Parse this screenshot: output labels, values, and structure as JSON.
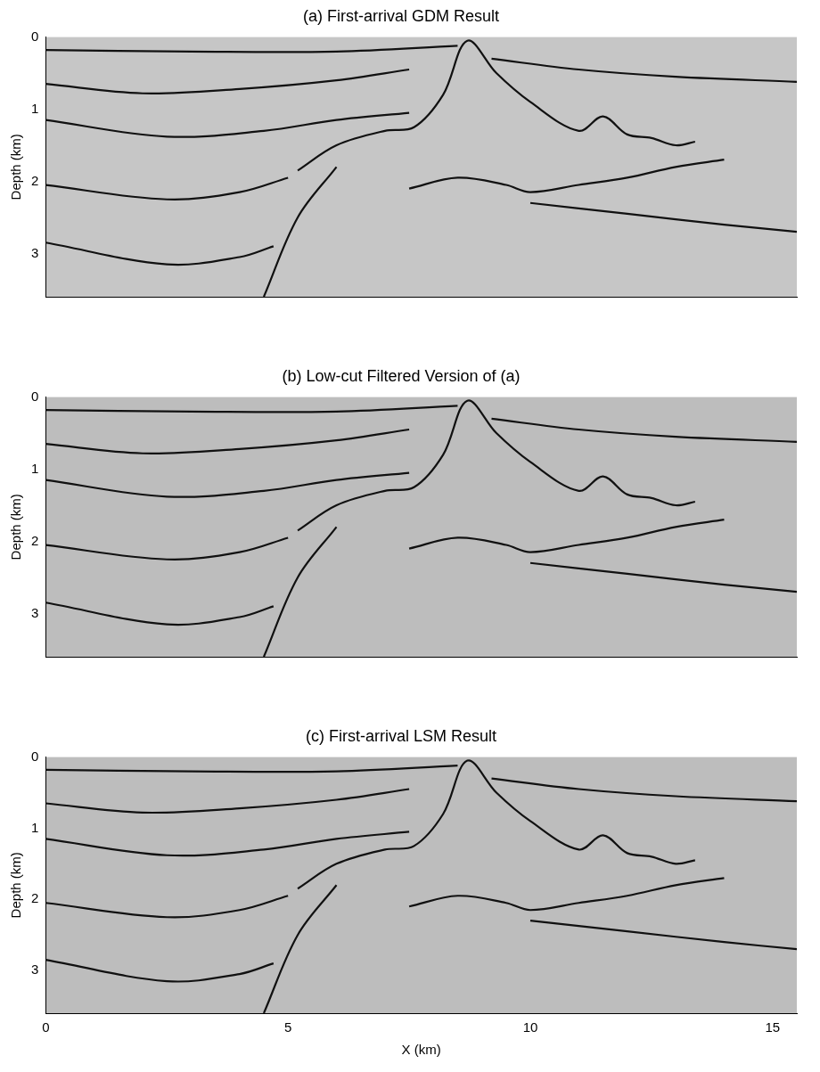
{
  "chart_data": [
    {
      "type": "line",
      "title": "(a) First-arrival GDM Result",
      "y_label": "Depth (km)",
      "xlim": [
        0,
        15.5
      ],
      "xticks": [
        0,
        5,
        10,
        15
      ],
      "ylim": [
        0,
        3.6
      ],
      "yticks": [
        0,
        1,
        2,
        3
      ],
      "grid": false,
      "tick_labels": "y",
      "series": [
        {
          "color": "#111111",
          "x": [
            0,
            3,
            6,
            8.5
          ],
          "values": [
            0.18,
            0.2,
            0.2,
            0.12
          ]
        },
        {
          "color": "#111111",
          "x": [
            0,
            2,
            4,
            6,
            7.5
          ],
          "values": [
            0.65,
            0.78,
            0.72,
            0.6,
            0.45
          ]
        },
        {
          "color": "#111111",
          "x": [
            9.2,
            11,
            13,
            15.5
          ],
          "values": [
            0.3,
            0.45,
            0.55,
            0.62
          ]
        },
        {
          "color": "#111111",
          "x": [
            0,
            2.5,
            4.5,
            6,
            7.5
          ],
          "values": [
            1.15,
            1.38,
            1.3,
            1.15,
            1.05
          ]
        },
        {
          "color": "#111111",
          "x": [
            0,
            2.5,
            4,
            5
          ],
          "values": [
            2.05,
            2.25,
            2.15,
            1.95
          ]
        },
        {
          "color": "#111111",
          "x": [
            0,
            2.5,
            4,
            4.7
          ],
          "values": [
            2.85,
            3.15,
            3.05,
            2.9
          ]
        },
        {
          "color": "#111111",
          "x": [
            5.2,
            6,
            7,
            7.6,
            8.2,
            8.7,
            9.3,
            10,
            11,
            11.5,
            12,
            12.5,
            13,
            13.4
          ],
          "values": [
            1.85,
            1.5,
            1.3,
            1.25,
            0.8,
            0.05,
            0.5,
            0.9,
            1.3,
            1.1,
            1.35,
            1.4,
            1.5,
            1.45
          ]
        },
        {
          "color": "#111111",
          "x": [
            7.5,
            8.5,
            9.5,
            10,
            11,
            12,
            13,
            14
          ],
          "values": [
            2.1,
            1.95,
            2.05,
            2.15,
            2.05,
            1.95,
            1.8,
            1.7
          ]
        },
        {
          "color": "#111111",
          "x": [
            10,
            12,
            14,
            15.5
          ],
          "values": [
            2.3,
            2.45,
            2.6,
            2.7
          ]
        },
        {
          "color": "#111111",
          "x": [
            4.5,
            5.2,
            6
          ],
          "values": [
            3.6,
            2.5,
            1.8
          ]
        }
      ]
    },
    {
      "type": "line",
      "title": "(b) Low-cut Filtered Version of (a)",
      "y_label": "Depth (km)",
      "xlim": [
        0,
        15.5
      ],
      "xticks": [
        0,
        5,
        10,
        15
      ],
      "ylim": [
        0,
        3.6
      ],
      "yticks": [
        0,
        1,
        2,
        3
      ],
      "grid": false,
      "tick_labels": "y",
      "series": [
        {
          "color": "#111111",
          "x": [
            0,
            3,
            6,
            8.5
          ],
          "values": [
            0.18,
            0.2,
            0.2,
            0.12
          ]
        },
        {
          "color": "#111111",
          "x": [
            0,
            2,
            4,
            6,
            7.5
          ],
          "values": [
            0.65,
            0.78,
            0.72,
            0.6,
            0.45
          ]
        },
        {
          "color": "#111111",
          "x": [
            9.2,
            11,
            13,
            15.5
          ],
          "values": [
            0.3,
            0.45,
            0.55,
            0.62
          ]
        },
        {
          "color": "#111111",
          "x": [
            0,
            2.5,
            4.5,
            6,
            7.5
          ],
          "values": [
            1.15,
            1.38,
            1.3,
            1.15,
            1.05
          ]
        },
        {
          "color": "#111111",
          "x": [
            0,
            2.5,
            4,
            5
          ],
          "values": [
            2.05,
            2.25,
            2.15,
            1.95
          ]
        },
        {
          "color": "#111111",
          "x": [
            0,
            2.5,
            4,
            4.7
          ],
          "values": [
            2.85,
            3.15,
            3.05,
            2.9
          ]
        },
        {
          "color": "#111111",
          "x": [
            5.2,
            6,
            7,
            7.6,
            8.2,
            8.7,
            9.3,
            10,
            11,
            11.5,
            12,
            12.5,
            13,
            13.4
          ],
          "values": [
            1.85,
            1.5,
            1.3,
            1.25,
            0.8,
            0.05,
            0.5,
            0.9,
            1.3,
            1.1,
            1.35,
            1.4,
            1.5,
            1.45
          ]
        },
        {
          "color": "#111111",
          "x": [
            7.5,
            8.5,
            9.5,
            10,
            11,
            12,
            13,
            14
          ],
          "values": [
            2.1,
            1.95,
            2.05,
            2.15,
            2.05,
            1.95,
            1.8,
            1.7
          ]
        },
        {
          "color": "#111111",
          "x": [
            10,
            12,
            14,
            15.5
          ],
          "values": [
            2.3,
            2.45,
            2.6,
            2.7
          ]
        },
        {
          "color": "#111111",
          "x": [
            4.5,
            5.2,
            6
          ],
          "values": [
            3.6,
            2.5,
            1.8
          ]
        }
      ]
    },
    {
      "type": "line",
      "title": "(c) First-arrival LSM Result",
      "x_label": "X (km)",
      "y_label": "Depth (km)",
      "xlim": [
        0,
        15.5
      ],
      "xticks": [
        0,
        5,
        10,
        15
      ],
      "ylim": [
        0,
        3.6
      ],
      "yticks": [
        0,
        1,
        2,
        3
      ],
      "grid": false,
      "series": [
        {
          "color": "#111111",
          "x": [
            0,
            3,
            6,
            8.5
          ],
          "values": [
            0.18,
            0.2,
            0.2,
            0.12
          ]
        },
        {
          "color": "#111111",
          "x": [
            0,
            2,
            4,
            6,
            7.5
          ],
          "values": [
            0.65,
            0.78,
            0.72,
            0.6,
            0.45
          ]
        },
        {
          "color": "#111111",
          "x": [
            9.2,
            11,
            13,
            15.5
          ],
          "values": [
            0.3,
            0.45,
            0.55,
            0.62
          ]
        },
        {
          "color": "#111111",
          "x": [
            0,
            2.5,
            4.5,
            6,
            7.5
          ],
          "values": [
            1.15,
            1.38,
            1.3,
            1.15,
            1.05
          ]
        },
        {
          "color": "#111111",
          "x": [
            0,
            2.5,
            4,
            5
          ],
          "values": [
            2.05,
            2.25,
            2.15,
            1.95
          ]
        },
        {
          "color": "#111111",
          "x": [
            0,
            2.5,
            4,
            4.7
          ],
          "values": [
            2.85,
            3.15,
            3.05,
            2.9
          ]
        },
        {
          "color": "#111111",
          "x": [
            5.2,
            6,
            7,
            7.6,
            8.2,
            8.7,
            9.3,
            10,
            11,
            11.5,
            12,
            12.5,
            13,
            13.4
          ],
          "values": [
            1.85,
            1.5,
            1.3,
            1.25,
            0.8,
            0.05,
            0.5,
            0.9,
            1.3,
            1.1,
            1.35,
            1.4,
            1.5,
            1.45
          ]
        },
        {
          "color": "#111111",
          "x": [
            7.5,
            8.5,
            9.5,
            10,
            11,
            12,
            13,
            14
          ],
          "values": [
            2.1,
            1.95,
            2.05,
            2.15,
            2.05,
            1.95,
            1.8,
            1.7
          ]
        },
        {
          "color": "#111111",
          "x": [
            10,
            12,
            14,
            15.5
          ],
          "values": [
            2.3,
            2.45,
            2.6,
            2.7
          ]
        },
        {
          "color": "#111111",
          "x": [
            4.5,
            5.2,
            6
          ],
          "values": [
            3.6,
            2.5,
            1.8
          ]
        }
      ]
    }
  ]
}
